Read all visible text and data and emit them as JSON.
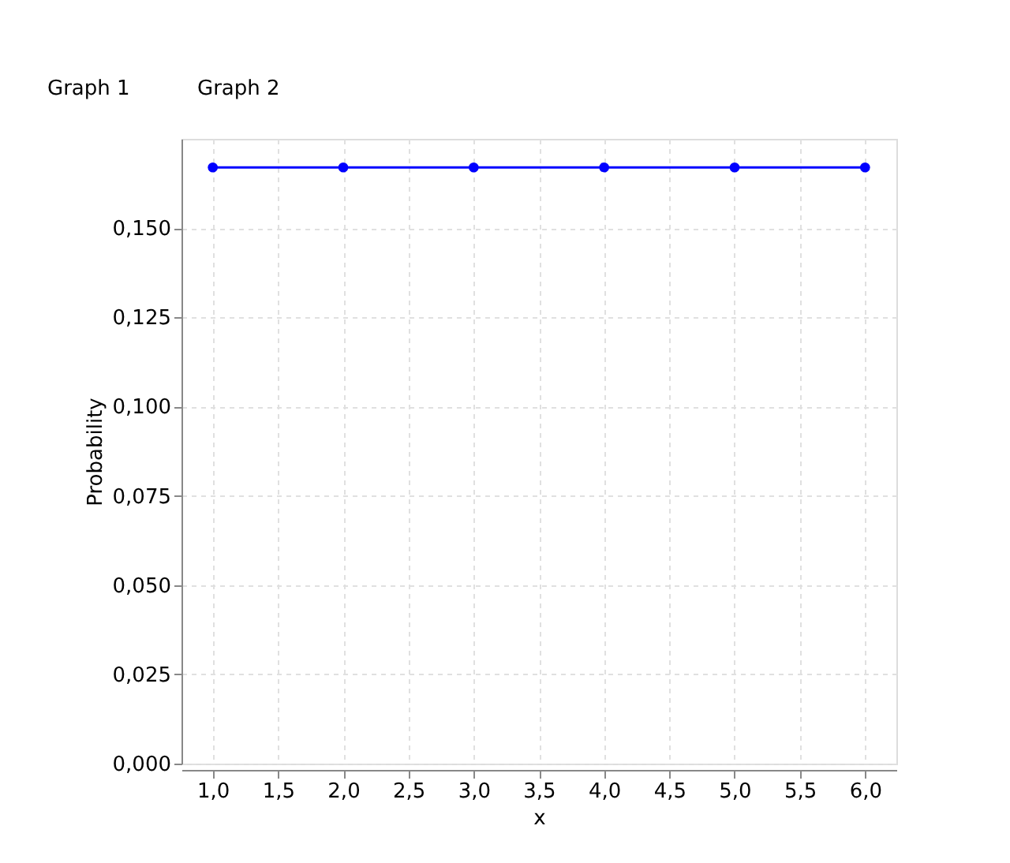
{
  "chart_data": {
    "type": "line",
    "xlabel": "x",
    "ylabel": "Probability",
    "x": [
      1,
      2,
      3,
      4,
      5,
      6
    ],
    "series": [
      {
        "color": "#0000ff",
        "values": [
          0.167,
          0.167,
          0.167,
          0.167,
          0.167,
          0.167
        ]
      }
    ],
    "xlim": [
      0.76,
      6.24
    ],
    "xticks": [
      {
        "value": 1,
        "label": "1,0"
      },
      {
        "value": 1.5,
        "label": "1,5"
      },
      {
        "value": 2,
        "label": "2,0"
      },
      {
        "value": 2.5,
        "label": "2,5"
      },
      {
        "value": 3,
        "label": "3,0"
      },
      {
        "value": 3.5,
        "label": "3,5"
      },
      {
        "value": 4,
        "label": "4,0"
      },
      {
        "value": 4.5,
        "label": "4,5"
      },
      {
        "value": 5,
        "label": "5,0"
      },
      {
        "value": 5.5,
        "label": "5,5"
      },
      {
        "value": 6,
        "label": "6,0"
      }
    ],
    "ylim": [
      0,
      0.175
    ],
    "yticks": [
      {
        "value": 0,
        "label": "0,000"
      },
      {
        "value": 0.025,
        "label": "0,025"
      },
      {
        "value": 0.05,
        "label": "0,050"
      },
      {
        "value": 0.075,
        "label": "0,075"
      },
      {
        "value": 0.1,
        "label": "0,100"
      },
      {
        "value": 0.125,
        "label": "0,125"
      },
      {
        "value": 0.15,
        "label": "0,150"
      }
    ],
    "annotations": [
      "Graph 1",
      "Graph 2"
    ],
    "grid": true,
    "marker": "circle",
    "line_style": "solid"
  }
}
